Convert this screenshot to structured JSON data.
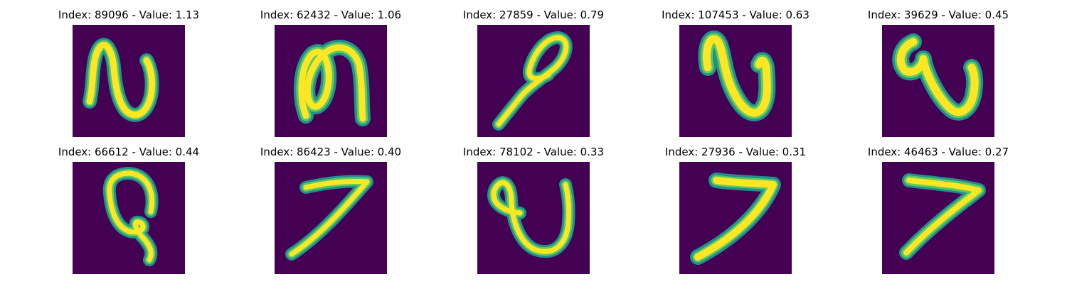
{
  "colors": {
    "background": "#440154",
    "stroke_core": "#fde725",
    "stroke_mid": "#5ec962",
    "stroke_edge": "#21918c",
    "stroke_outer": "#3b528b"
  },
  "panels": [
    {
      "title": "Index: 89096 - Value: 1.13",
      "glyph": "glyph-n-loop"
    },
    {
      "title": "Index: 62432 - Value: 1.06",
      "glyph": "glyph-m-loops"
    },
    {
      "title": "Index: 27859 - Value: 0.79",
      "glyph": "glyph-loop-stem"
    },
    {
      "title": "Index: 107453 - Value: 0.63",
      "glyph": "glyph-n-hook"
    },
    {
      "title": "Index: 39629 - Value: 0.45",
      "glyph": "glyph-s-curve"
    },
    {
      "title": "Index: 66612 - Value: 0.44",
      "glyph": "glyph-ring-tail"
    },
    {
      "title": "Index: 86423 - Value: 0.40",
      "glyph": "glyph-seven"
    },
    {
      "title": "Index: 78102 - Value: 0.33",
      "glyph": "glyph-u-loop"
    },
    {
      "title": "Index: 27936 - Value: 0.31",
      "glyph": "glyph-seven"
    },
    {
      "title": "Index: 46463 - Value: 0.27",
      "glyph": "glyph-seven"
    }
  ]
}
